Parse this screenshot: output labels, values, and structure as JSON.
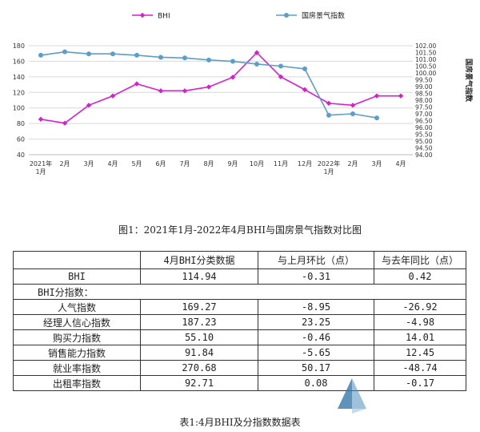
{
  "chart_data": {
    "type": "line",
    "categories": [
      "2021年1月",
      "2月",
      "3月",
      "4月",
      "5月",
      "6月",
      "7月",
      "8月",
      "9月",
      "10月",
      "11月",
      "12月",
      "2022年1月",
      "2月",
      "3月",
      "4月"
    ],
    "x_tick_lines": [
      [
        "2021年",
        "1月"
      ],
      [
        "2月"
      ],
      [
        "3月"
      ],
      [
        "4月"
      ],
      [
        "5月"
      ],
      [
        "6月"
      ],
      [
        "7月"
      ],
      [
        "8月"
      ],
      [
        "9月"
      ],
      [
        "10月"
      ],
      [
        "11月"
      ],
      [
        "12月"
      ],
      [
        "2022年",
        "1月"
      ],
      [
        "2月"
      ],
      [
        "3月"
      ],
      [
        "4月"
      ]
    ],
    "series": [
      {
        "name": "BHI",
        "axis": "left",
        "color": "#d61fd2",
        "marker": "diamond",
        "values": [
          85.5,
          80.5,
          103.5,
          115.5,
          131,
          122,
          122,
          127,
          139.5,
          171,
          140,
          123.5,
          106,
          103.5,
          115.5,
          115.5
        ]
      },
      {
        "name": "国房景气指数",
        "axis": "right",
        "color": "#5b9ec9",
        "marker": "circle",
        "values": [
          101.3,
          101.55,
          101.4,
          101.4,
          101.3,
          101.15,
          101.1,
          100.95,
          100.85,
          100.65,
          100.5,
          100.3,
          96.9,
          97.0,
          96.7,
          null
        ]
      }
    ],
    "left_axis": {
      "min": 40,
      "max": 180,
      "ticks": [
        "40",
        "60",
        "80",
        "100",
        "120",
        "140",
        "160",
        "180"
      ]
    },
    "right_axis": {
      "min": 94.0,
      "max": 102.0,
      "ticks": [
        "94.00",
        "94.50",
        "95.00",
        "95.50",
        "96.00",
        "96.50",
        "97.00",
        "97.50",
        "98.00",
        "98.50",
        "99.00",
        "99.50",
        "100.00",
        "100.50",
        "101.00",
        "101.50",
        "102.00"
      ]
    },
    "right_axis_label": "国房景气指数",
    "grid": true,
    "legend_position": "top"
  },
  "figure_caption": "图1：2021年1月-2022年4月BHI与国房景气指数对比图",
  "table": {
    "headers": [
      "",
      "4月BHI分类数据",
      "与上月环比（点）",
      "与去年同比（点）"
    ],
    "rows": [
      {
        "label": "BHI",
        "values": [
          "114.94",
          "-0.31",
          "0.42"
        ],
        "align": "center"
      },
      {
        "label": "BHI分指数：",
        "values": [
          "",
          "",
          ""
        ],
        "align": "left",
        "no_inner": true
      },
      {
        "label": "人气指数",
        "values": [
          "169.27",
          "-8.95",
          "-26.92"
        ],
        "align": "center"
      },
      {
        "label": "经理人信心指数",
        "values": [
          "187.23",
          "23.25",
          "-4.98"
        ],
        "align": "center"
      },
      {
        "label": "购买力指数",
        "values": [
          "55.10",
          "-0.46",
          "14.01"
        ],
        "align": "center"
      },
      {
        "label": "销售能力指数",
        "values": [
          "91.84",
          "-5.65",
          "12.45"
        ],
        "align": "center"
      },
      {
        "label": "就业率指数",
        "values": [
          "270.68",
          "50.17",
          "-48.74"
        ],
        "align": "center"
      },
      {
        "label": "出租率指数",
        "values": [
          "92.71",
          "0.08",
          "-0.17"
        ],
        "align": "center"
      }
    ]
  },
  "table_caption": "表1:4月BHI及分指数数据表"
}
